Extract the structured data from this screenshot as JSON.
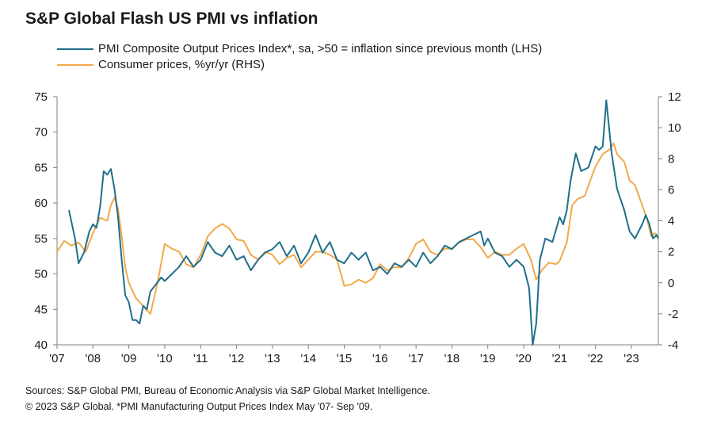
{
  "title": "S&P Global Flash US PMI vs inflation",
  "colors": {
    "pmi": "#1f6f8b",
    "cpi": "#f2a949",
    "axis": "#7f7f7f"
  },
  "footer": {
    "line1": "Sources: S&P Global PMI, Bureau of Economic Analysis via S&P Global Market Intelligence.",
    "line2": "© 2023 S&P Global. *PMI Manufacturing Output Prices Index May '07- Sep '09."
  },
  "chart_data": {
    "type": "line",
    "title": "S&P Global Flash US PMI vs inflation",
    "legend_placement": "top",
    "grid": false,
    "x_range": [
      2007.0,
      2023.75
    ],
    "x_ticks": [
      {
        "x": 2007,
        "label": "'07"
      },
      {
        "x": 2008,
        "label": "'08"
      },
      {
        "x": 2009,
        "label": "'09"
      },
      {
        "x": 2010,
        "label": "'10"
      },
      {
        "x": 2011,
        "label": "'11"
      },
      {
        "x": 2012,
        "label": "'12"
      },
      {
        "x": 2013,
        "label": "'13"
      },
      {
        "x": 2014,
        "label": "'14"
      },
      {
        "x": 2015,
        "label": "'15"
      },
      {
        "x": 2016,
        "label": "'16"
      },
      {
        "x": 2017,
        "label": "'17"
      },
      {
        "x": 2018,
        "label": "'18"
      },
      {
        "x": 2019,
        "label": "'19"
      },
      {
        "x": 2020,
        "label": "'20"
      },
      {
        "x": 2021,
        "label": "'21"
      },
      {
        "x": 2022,
        "label": "'22"
      },
      {
        "x": 2023,
        "label": "'23"
      }
    ],
    "y_left": {
      "range": [
        40,
        75
      ],
      "ticks": [
        "40",
        "45",
        "50",
        "55",
        "60",
        "65",
        "70",
        "75"
      ]
    },
    "y_right": {
      "range": [
        -4,
        12
      ],
      "ticks": [
        "-4",
        "-2",
        "0",
        "2",
        "4",
        "6",
        "8",
        "10",
        "12"
      ]
    },
    "series": [
      {
        "name": "PMI Composite Output Prices Index*, sa, >50 = inflation since previous month (LHS)",
        "axis": "left",
        "points": [
          [
            2007.33,
            59.0
          ],
          [
            2007.5,
            55.0
          ],
          [
            2007.6,
            51.5
          ],
          [
            2007.75,
            53.0
          ],
          [
            2007.9,
            56.0
          ],
          [
            2008.0,
            57.0
          ],
          [
            2008.1,
            56.5
          ],
          [
            2008.2,
            59.5
          ],
          [
            2008.3,
            64.5
          ],
          [
            2008.4,
            64.0
          ],
          [
            2008.5,
            64.8
          ],
          [
            2008.6,
            62.0
          ],
          [
            2008.7,
            58.0
          ],
          [
            2008.8,
            52.0
          ],
          [
            2008.9,
            47.0
          ],
          [
            2009.0,
            46.0
          ],
          [
            2009.1,
            43.5
          ],
          [
            2009.2,
            43.5
          ],
          [
            2009.3,
            43.0
          ],
          [
            2009.4,
            45.5
          ],
          [
            2009.5,
            45.0
          ],
          [
            2009.6,
            47.5
          ],
          [
            2009.75,
            48.5
          ],
          [
            2009.9,
            49.5
          ],
          [
            2010.0,
            49.0
          ],
          [
            2010.2,
            50.0
          ],
          [
            2010.4,
            51.0
          ],
          [
            2010.6,
            52.5
          ],
          [
            2010.8,
            51.0
          ],
          [
            2011.0,
            52.0
          ],
          [
            2011.2,
            54.5
          ],
          [
            2011.4,
            53.0
          ],
          [
            2011.6,
            52.5
          ],
          [
            2011.8,
            54.0
          ],
          [
            2012.0,
            52.0
          ],
          [
            2012.2,
            52.5
          ],
          [
            2012.4,
            50.5
          ],
          [
            2012.6,
            52.0
          ],
          [
            2012.8,
            53.0
          ],
          [
            2013.0,
            53.5
          ],
          [
            2013.2,
            54.5
          ],
          [
            2013.4,
            52.5
          ],
          [
            2013.6,
            54.0
          ],
          [
            2013.8,
            51.5
          ],
          [
            2014.0,
            53.0
          ],
          [
            2014.2,
            55.5
          ],
          [
            2014.4,
            53.0
          ],
          [
            2014.6,
            54.5
          ],
          [
            2014.8,
            52.0
          ],
          [
            2015.0,
            51.5
          ],
          [
            2015.2,
            53.0
          ],
          [
            2015.4,
            52.0
          ],
          [
            2015.6,
            53.0
          ],
          [
            2015.8,
            50.5
          ],
          [
            2016.0,
            51.0
          ],
          [
            2016.2,
            50.0
          ],
          [
            2016.4,
            51.5
          ],
          [
            2016.6,
            51.0
          ],
          [
            2016.8,
            52.0
          ],
          [
            2017.0,
            51.0
          ],
          [
            2017.2,
            53.0
          ],
          [
            2017.4,
            51.5
          ],
          [
            2017.6,
            52.5
          ],
          [
            2017.8,
            54.0
          ],
          [
            2018.0,
            53.5
          ],
          [
            2018.2,
            54.5
          ],
          [
            2018.4,
            55.0
          ],
          [
            2018.6,
            55.5
          ],
          [
            2018.8,
            56.0
          ],
          [
            2018.9,
            54.0
          ],
          [
            2019.0,
            55.0
          ],
          [
            2019.2,
            53.0
          ],
          [
            2019.4,
            52.5
          ],
          [
            2019.6,
            51.0
          ],
          [
            2019.8,
            52.0
          ],
          [
            2020.0,
            51.0
          ],
          [
            2020.15,
            48.0
          ],
          [
            2020.25,
            40.0
          ],
          [
            2020.35,
            43.0
          ],
          [
            2020.45,
            52.0
          ],
          [
            2020.6,
            55.0
          ],
          [
            2020.8,
            54.5
          ],
          [
            2021.0,
            58.0
          ],
          [
            2021.1,
            57.0
          ],
          [
            2021.2,
            59.0
          ],
          [
            2021.3,
            63.0
          ],
          [
            2021.45,
            67.0
          ],
          [
            2021.6,
            64.5
          ],
          [
            2021.8,
            65.0
          ],
          [
            2022.0,
            68.0
          ],
          [
            2022.1,
            67.5
          ],
          [
            2022.2,
            68.0
          ],
          [
            2022.3,
            74.5
          ],
          [
            2022.45,
            67.0
          ],
          [
            2022.6,
            62.0
          ],
          [
            2022.8,
            59.0
          ],
          [
            2022.95,
            56.0
          ],
          [
            2023.1,
            55.0
          ],
          [
            2023.3,
            57.0
          ],
          [
            2023.4,
            58.3
          ],
          [
            2023.5,
            57.0
          ],
          [
            2023.6,
            55.0
          ],
          [
            2023.7,
            55.5
          ],
          [
            2023.75,
            55.0
          ]
        ]
      },
      {
        "name": "Consumer prices, %yr/yr (RHS)",
        "axis": "right",
        "points": [
          [
            2007.0,
            2.0
          ],
          [
            2007.2,
            2.7
          ],
          [
            2007.4,
            2.4
          ],
          [
            2007.6,
            2.6
          ],
          [
            2007.8,
            2.0
          ],
          [
            2008.0,
            3.2
          ],
          [
            2008.2,
            4.2
          ],
          [
            2008.4,
            4.0
          ],
          [
            2008.5,
            5.0
          ],
          [
            2008.6,
            5.5
          ],
          [
            2008.7,
            4.8
          ],
          [
            2008.8,
            3.0
          ],
          [
            2008.9,
            1.0
          ],
          [
            2009.0,
            0.0
          ],
          [
            2009.2,
            -1.0
          ],
          [
            2009.4,
            -1.5
          ],
          [
            2009.6,
            -2.0
          ],
          [
            2009.8,
            0.0
          ],
          [
            2010.0,
            2.5
          ],
          [
            2010.2,
            2.2
          ],
          [
            2010.4,
            2.0
          ],
          [
            2010.6,
            1.2
          ],
          [
            2010.8,
            1.0
          ],
          [
            2011.0,
            1.8
          ],
          [
            2011.2,
            3.0
          ],
          [
            2011.4,
            3.5
          ],
          [
            2011.6,
            3.8
          ],
          [
            2011.8,
            3.5
          ],
          [
            2012.0,
            2.8
          ],
          [
            2012.2,
            2.7
          ],
          [
            2012.4,
            1.8
          ],
          [
            2012.6,
            1.5
          ],
          [
            2012.8,
            2.0
          ],
          [
            2013.0,
            1.8
          ],
          [
            2013.2,
            1.2
          ],
          [
            2013.4,
            1.6
          ],
          [
            2013.6,
            1.8
          ],
          [
            2013.8,
            1.0
          ],
          [
            2014.0,
            1.5
          ],
          [
            2014.2,
            2.0
          ],
          [
            2014.4,
            2.0
          ],
          [
            2014.6,
            1.8
          ],
          [
            2014.8,
            1.5
          ],
          [
            2015.0,
            -0.2
          ],
          [
            2015.2,
            -0.1
          ],
          [
            2015.4,
            0.2
          ],
          [
            2015.6,
            0.0
          ],
          [
            2015.8,
            0.3
          ],
          [
            2016.0,
            1.2
          ],
          [
            2016.2,
            0.8
          ],
          [
            2016.4,
            1.0
          ],
          [
            2016.6,
            1.0
          ],
          [
            2016.8,
            1.6
          ],
          [
            2017.0,
            2.5
          ],
          [
            2017.2,
            2.8
          ],
          [
            2017.4,
            2.0
          ],
          [
            2017.6,
            1.8
          ],
          [
            2017.8,
            2.2
          ],
          [
            2018.0,
            2.2
          ],
          [
            2018.2,
            2.6
          ],
          [
            2018.4,
            2.8
          ],
          [
            2018.6,
            2.8
          ],
          [
            2018.8,
            2.3
          ],
          [
            2019.0,
            1.6
          ],
          [
            2019.2,
            2.0
          ],
          [
            2019.4,
            1.8
          ],
          [
            2019.6,
            1.8
          ],
          [
            2019.8,
            2.2
          ],
          [
            2020.0,
            2.5
          ],
          [
            2020.2,
            1.5
          ],
          [
            2020.35,
            0.2
          ],
          [
            2020.5,
            0.8
          ],
          [
            2020.7,
            1.3
          ],
          [
            2020.9,
            1.2
          ],
          [
            2021.0,
            1.4
          ],
          [
            2021.2,
            2.6
          ],
          [
            2021.35,
            5.0
          ],
          [
            2021.5,
            5.4
          ],
          [
            2021.7,
            5.6
          ],
          [
            2021.9,
            6.9
          ],
          [
            2022.0,
            7.5
          ],
          [
            2022.2,
            8.3
          ],
          [
            2022.4,
            8.6
          ],
          [
            2022.5,
            9.0
          ],
          [
            2022.6,
            8.3
          ],
          [
            2022.8,
            7.8
          ],
          [
            2022.95,
            6.6
          ],
          [
            2023.1,
            6.3
          ],
          [
            2023.3,
            5.0
          ],
          [
            2023.45,
            4.0
          ],
          [
            2023.55,
            3.0
          ],
          [
            2023.65,
            3.2
          ],
          [
            2023.75,
            3.0
          ]
        ]
      }
    ]
  }
}
